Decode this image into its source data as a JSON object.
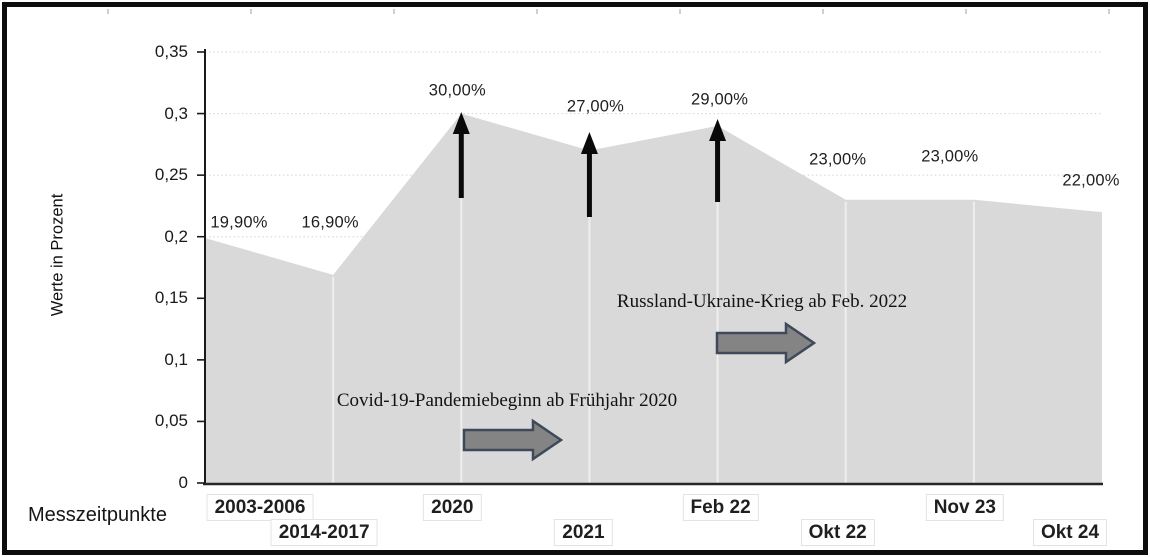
{
  "chart_data": {
    "type": "area",
    "title": "",
    "ylabel": "Werte in Prozent",
    "xlabel": "Messzeitpunkte",
    "categories": [
      "2003-2006",
      "2014-2017",
      "2020",
      "2021",
      "Feb 22",
      "Okt 22",
      "Nov 23",
      "Okt 24"
    ],
    "values": [
      0.199,
      0.169,
      0.3,
      0.27,
      0.29,
      0.23,
      0.23,
      0.22
    ],
    "data_labels": [
      "19,90%",
      "16,90%",
      "30,00%",
      "27,00%",
      "29,00%",
      "23,00%",
      "23,00%",
      "22,00%"
    ],
    "ylim": [
      0,
      0.35
    ],
    "ytick_step": 0.05,
    "ytick_labels": [
      "0",
      "0,05",
      "0,1",
      "0,15",
      "0,2",
      "0,25",
      "0,3",
      "0,35"
    ],
    "grid": "horizontal-dotted",
    "legend": "none",
    "area_color": "#d9d9d9",
    "gridline_color": "#d3d3d3",
    "axis_color": "#1a1a1a",
    "highlight_arrow_color": "#0a0a0a",
    "highlight_arrow_indices": [
      2,
      3,
      4
    ],
    "annotations": [
      {
        "text": "Covid-19-Pandemiebeginn ab Frühjahr 2020",
        "arrow": "gray-block-right",
        "arrow_fill": "#848484",
        "arrow_border": "#3e4a59"
      },
      {
        "text": "Russland-Ukraine-Krieg ab Feb. 2022",
        "arrow": "gray-block-right",
        "arrow_fill": "#848484",
        "arrow_border": "#3e4a59"
      }
    ]
  }
}
